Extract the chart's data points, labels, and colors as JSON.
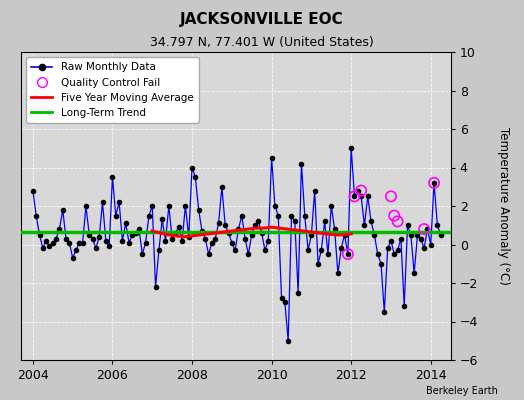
{
  "title": "JACKSONVILLE EOC",
  "subtitle": "34.797 N, 77.401 W (United States)",
  "ylabel": "Temperature Anomaly (°C)",
  "watermark": "Berkeley Earth",
  "xlim": [
    2003.7,
    2014.5
  ],
  "ylim": [
    -6,
    10
  ],
  "yticks": [
    -6,
    -4,
    -2,
    0,
    2,
    4,
    6,
    8,
    10
  ],
  "xticks": [
    2004,
    2006,
    2008,
    2010,
    2012,
    2014
  ],
  "fig_bg_color": "#c8c8c8",
  "plot_bg_color": "#d8d8d8",
  "green_line_y": 0.65,
  "raw_data_times": [
    2004.0,
    2004.083,
    2004.167,
    2004.25,
    2004.333,
    2004.417,
    2004.5,
    2004.583,
    2004.667,
    2004.75,
    2004.833,
    2004.917,
    2005.0,
    2005.083,
    2005.167,
    2005.25,
    2005.333,
    2005.417,
    2005.5,
    2005.583,
    2005.667,
    2005.75,
    2005.833,
    2005.917,
    2006.0,
    2006.083,
    2006.167,
    2006.25,
    2006.333,
    2006.417,
    2006.5,
    2006.583,
    2006.667,
    2006.75,
    2006.833,
    2006.917,
    2007.0,
    2007.083,
    2007.167,
    2007.25,
    2007.333,
    2007.417,
    2007.5,
    2007.583,
    2007.667,
    2007.75,
    2007.833,
    2007.917,
    2008.0,
    2008.083,
    2008.167,
    2008.25,
    2008.333,
    2008.417,
    2008.5,
    2008.583,
    2008.667,
    2008.75,
    2008.833,
    2008.917,
    2009.0,
    2009.083,
    2009.167,
    2009.25,
    2009.333,
    2009.417,
    2009.5,
    2009.583,
    2009.667,
    2009.75,
    2009.833,
    2009.917,
    2010.0,
    2010.083,
    2010.167,
    2010.25,
    2010.333,
    2010.417,
    2010.5,
    2010.583,
    2010.667,
    2010.75,
    2010.833,
    2010.917,
    2011.0,
    2011.083,
    2011.167,
    2011.25,
    2011.333,
    2011.417,
    2011.5,
    2011.583,
    2011.667,
    2011.75,
    2011.833,
    2011.917,
    2012.0,
    2012.083,
    2012.167,
    2012.25,
    2012.333,
    2012.417,
    2012.5,
    2012.583,
    2012.667,
    2012.75,
    2012.833,
    2012.917,
    2013.0,
    2013.083,
    2013.167,
    2013.25,
    2013.333,
    2013.417,
    2013.5,
    2013.583,
    2013.667,
    2013.75,
    2013.833,
    2013.917,
    2014.0,
    2014.083,
    2014.167,
    2014.25
  ],
  "raw_data_values": [
    2.8,
    1.5,
    0.5,
    -0.2,
    0.2,
    -0.1,
    0.1,
    0.3,
    0.8,
    1.8,
    0.3,
    0.1,
    -0.7,
    -0.3,
    0.1,
    0.1,
    2.0,
    0.5,
    0.3,
    -0.2,
    0.4,
    2.2,
    0.2,
    -0.1,
    3.5,
    1.5,
    2.2,
    0.2,
    1.1,
    0.1,
    0.5,
    0.6,
    0.8,
    -0.5,
    0.1,
    1.5,
    2.0,
    -2.2,
    -0.3,
    1.3,
    0.2,
    2.0,
    0.3,
    0.6,
    0.9,
    0.2,
    2.0,
    0.4,
    4.0,
    3.5,
    1.8,
    0.7,
    0.3,
    -0.5,
    0.1,
    0.3,
    1.1,
    3.0,
    1.0,
    0.6,
    0.1,
    -0.3,
    0.8,
    1.5,
    0.3,
    -0.5,
    0.5,
    1.0,
    1.2,
    0.6,
    -0.3,
    0.2,
    4.5,
    2.0,
    1.5,
    -2.8,
    -3.0,
    -5.0,
    1.5,
    1.2,
    -2.5,
    4.2,
    1.5,
    -0.3,
    0.5,
    2.8,
    -1.0,
    -0.3,
    1.2,
    -0.5,
    2.0,
    0.8,
    -1.5,
    -0.2,
    0.5,
    -0.5,
    5.0,
    2.5,
    2.8,
    2.5,
    1.0,
    2.5,
    1.2,
    0.5,
    -0.5,
    -1.0,
    -3.5,
    -0.2,
    0.2,
    -0.5,
    -0.3,
    0.3,
    -3.2,
    1.0,
    0.5,
    -1.5,
    0.5,
    0.3,
    -0.2,
    0.8,
    0.0,
    3.2,
    1.0,
    0.5
  ],
  "qc_fail_times": [
    2011.917,
    2012.083,
    2012.25,
    2013.0,
    2013.083,
    2013.167,
    2013.833,
    2014.083
  ],
  "qc_fail_values": [
    -0.5,
    2.5,
    2.8,
    2.5,
    1.5,
    1.2,
    0.8,
    3.2
  ],
  "moving_avg_times": [
    2007.0,
    2007.2,
    2007.4,
    2007.6,
    2007.8,
    2008.0,
    2008.2,
    2008.4,
    2008.6,
    2008.8,
    2009.0,
    2009.2,
    2009.4,
    2009.6,
    2009.8,
    2010.0,
    2010.2,
    2010.4,
    2010.6,
    2010.8,
    2011.0,
    2011.2,
    2011.4,
    2011.6,
    2011.8,
    2012.0
  ],
  "moving_avg_values": [
    0.7,
    0.6,
    0.5,
    0.45,
    0.4,
    0.45,
    0.5,
    0.55,
    0.6,
    0.65,
    0.7,
    0.75,
    0.8,
    0.85,
    0.85,
    0.9,
    0.85,
    0.8,
    0.75,
    0.7,
    0.65,
    0.6,
    0.55,
    0.5,
    0.5,
    0.55
  ],
  "line_color": "#0000ff",
  "marker_color": "black",
  "qc_color": "#ff00ff",
  "moving_avg_color": "red",
  "long_trend_color": "#00bb00"
}
